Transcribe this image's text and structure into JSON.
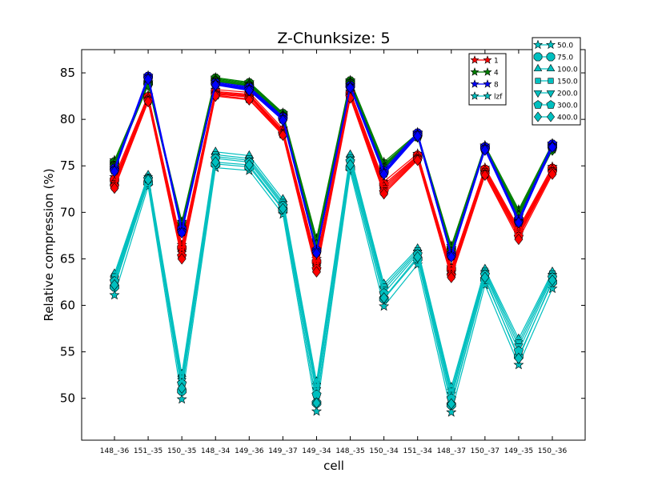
{
  "chart_data": {
    "type": "line",
    "title": "Z-Chunksize: 5",
    "xlabel": "cell",
    "ylabel": "Relative compression (%)",
    "ylim": [
      45.5,
      87.5
    ],
    "yticks": [
      50,
      55,
      60,
      65,
      70,
      75,
      80,
      85
    ],
    "grid": false,
    "categories": [
      "148_-36",
      "151_-35",
      "150_-35",
      "148_-34",
      "149_-36",
      "149_-37",
      "149_-34",
      "148_-35",
      "150_-34",
      "151_-34",
      "148_-37",
      "150_-37",
      "149_-35",
      "150_-36"
    ],
    "series_legend": {
      "placement": "upper-right (inner)",
      "entries": [
        {
          "name": "1",
          "color": "#ff0000"
        },
        {
          "name": "4",
          "color": "#007f00"
        },
        {
          "name": "8",
          "color": "#0000ff"
        },
        {
          "name": "lzf",
          "color": "#00bfbf"
        }
      ]
    },
    "marker_legend": {
      "placement": "top-right",
      "entries": [
        {
          "name": "50.0",
          "marker": "star"
        },
        {
          "name": "75.0",
          "marker": "octagon"
        },
        {
          "name": "100.0",
          "marker": "triangle-up"
        },
        {
          "name": "150.0",
          "marker": "square"
        },
        {
          "name": "200.0",
          "marker": "triangle-down"
        },
        {
          "name": "300.0",
          "marker": "pentagon"
        },
        {
          "name": "400.0",
          "marker": "diamond"
        }
      ]
    },
    "groups": [
      {
        "name": "1",
        "color": "#ff0000",
        "series": [
          {
            "name": "50.0",
            "marker": "star",
            "values": [
              73.8,
              82.6,
              66.5,
              83.2,
              82.9,
              79.0,
              65.0,
              83.0,
              73.3,
              76.3,
              64.1,
              74.8,
              68.3,
              74.9
            ]
          },
          {
            "name": "75.0",
            "marker": "octagon",
            "values": [
              73.5,
              82.4,
              66.2,
              83.0,
              82.7,
              78.8,
              64.7,
              82.8,
              73.0,
              76.1,
              63.9,
              74.6,
              68.1,
              74.7
            ]
          },
          {
            "name": "100.0",
            "marker": "triangle-up",
            "values": [
              73.3,
              82.3,
              66.0,
              82.9,
              82.6,
              78.7,
              64.5,
              82.7,
              72.8,
              76.0,
              63.7,
              74.5,
              68.0,
              74.6
            ]
          },
          {
            "name": "150.0",
            "marker": "square",
            "values": [
              73.1,
              82.2,
              65.8,
              82.8,
              82.5,
              78.6,
              64.3,
              82.6,
              72.6,
              75.9,
              63.5,
              74.4,
              67.8,
              74.5
            ]
          },
          {
            "name": "200.0",
            "marker": "triangle-down",
            "values": [
              72.9,
              82.1,
              65.6,
              82.7,
              82.4,
              78.5,
              64.1,
              82.5,
              72.4,
              75.8,
              63.4,
              74.3,
              67.6,
              74.4
            ]
          },
          {
            "name": "300.0",
            "marker": "pentagon",
            "values": [
              72.8,
              82.0,
              65.3,
              82.6,
              82.2,
              78.4,
              63.9,
              82.4,
              72.2,
              75.7,
              63.2,
              74.1,
              67.4,
              74.3
            ]
          },
          {
            "name": "400.0",
            "marker": "diamond",
            "values": [
              72.6,
              81.9,
              65.0,
              82.5,
              82.1,
              78.3,
              63.6,
              82.3,
              72.0,
              75.6,
              63.0,
              74.0,
              67.1,
              74.1
            ]
          }
        ]
      },
      {
        "name": "4",
        "color": "#007f00",
        "series": [
          {
            "name": "50.0",
            "marker": "star",
            "values": [
              75.6,
              84.0,
              69.0,
              84.5,
              84.0,
              80.7,
              67.2,
              84.2,
              75.4,
              78.5,
              66.4,
              77.2,
              70.3,
              77.4
            ]
          },
          {
            "name": "75.0",
            "marker": "octagon",
            "values": [
              75.4,
              83.9,
              68.8,
              84.4,
              83.9,
              80.6,
              67.0,
              84.1,
              75.2,
              78.4,
              66.2,
              77.0,
              70.1,
              77.2
            ]
          },
          {
            "name": "100.0",
            "marker": "triangle-up",
            "values": [
              75.3,
              83.9,
              68.7,
              84.3,
              83.8,
              80.5,
              66.9,
              84.0,
              75.1,
              78.3,
              66.1,
              76.9,
              70.0,
              77.1
            ]
          },
          {
            "name": "150.0",
            "marker": "square",
            "values": [
              75.2,
              83.8,
              68.6,
              84.2,
              83.7,
              80.4,
              66.8,
              84.0,
              75.0,
              78.2,
              66.0,
              76.8,
              69.9,
              77.0
            ]
          },
          {
            "name": "200.0",
            "marker": "triangle-down",
            "values": [
              75.1,
              83.8,
              68.5,
              84.2,
              83.7,
              80.4,
              66.7,
              83.9,
              74.9,
              78.2,
              65.9,
              76.8,
              69.8,
              76.9
            ]
          },
          {
            "name": "300.0",
            "marker": "pentagon",
            "values": [
              75.0,
              83.7,
              68.4,
              84.1,
              83.6,
              80.3,
              66.6,
              83.9,
              74.8,
              78.1,
              65.8,
              76.7,
              69.7,
              76.8
            ]
          },
          {
            "name": "400.0",
            "marker": "diamond",
            "values": [
              74.9,
              83.7,
              68.3,
              84.1,
              83.6,
              80.3,
              66.5,
              83.8,
              74.7,
              78.1,
              65.7,
              76.7,
              69.6,
              76.7
            ]
          }
        ]
      },
      {
        "name": "8",
        "color": "#0000ff",
        "series": [
          {
            "name": "50.0",
            "marker": "star",
            "values": [
              74.8,
              84.7,
              68.4,
              84.0,
              83.5,
              80.3,
              66.0,
              83.7,
              74.6,
              78.6,
              65.6,
              77.1,
              69.3,
              77.4
            ]
          },
          {
            "name": "75.0",
            "marker": "octagon",
            "values": [
              74.7,
              84.6,
              68.2,
              83.9,
              83.4,
              80.2,
              65.9,
              83.6,
              74.4,
              78.5,
              65.5,
              77.0,
              69.2,
              77.3
            ]
          },
          {
            "name": "100.0",
            "marker": "triangle-up",
            "values": [
              74.6,
              84.5,
              68.1,
              83.9,
              83.3,
              80.1,
              65.8,
              83.6,
              74.3,
              78.4,
              65.4,
              76.9,
              69.1,
              77.2
            ]
          },
          {
            "name": "150.0",
            "marker": "square",
            "values": [
              74.6,
              84.5,
              68.0,
              83.8,
              83.3,
              80.1,
              65.8,
              83.5,
              74.3,
              78.4,
              65.4,
              76.9,
              69.0,
              77.1
            ]
          },
          {
            "name": "200.0",
            "marker": "triangle-down",
            "values": [
              74.5,
              84.4,
              67.9,
              83.8,
              83.2,
              80.0,
              65.7,
              83.5,
              74.2,
              78.3,
              65.3,
              76.8,
              69.0,
              77.1
            ]
          },
          {
            "name": "300.0",
            "marker": "pentagon",
            "values": [
              74.5,
              84.4,
              67.9,
              83.7,
              83.2,
              80.0,
              65.7,
              83.4,
              74.2,
              78.3,
              65.3,
              76.8,
              68.9,
              77.0
            ]
          },
          {
            "name": "400.0",
            "marker": "diamond",
            "values": [
              74.4,
              84.3,
              67.8,
              83.7,
              83.1,
              79.9,
              65.6,
              83.4,
              74.1,
              78.2,
              65.2,
              76.7,
              68.9,
              77.0
            ]
          }
        ]
      },
      {
        "name": "lzf",
        "color": "#00bfbf",
        "series": [
          {
            "name": "50.0",
            "marker": "star",
            "values": [
              61.1,
              72.8,
              49.9,
              74.8,
              74.5,
              69.8,
              48.6,
              74.4,
              59.9,
              64.4,
              48.5,
              62.2,
              53.6,
              61.8
            ]
          },
          {
            "name": "75.0",
            "marker": "octagon",
            "values": [
              62.0,
              73.2,
              50.8,
              75.2,
              74.9,
              70.3,
              49.5,
              74.8,
              60.7,
              65.0,
              49.3,
              62.8,
              54.5,
              62.5
            ]
          },
          {
            "name": "100.0",
            "marker": "triangle-up",
            "values": [
              63.4,
              74.0,
              52.6,
              76.5,
              76.1,
              71.4,
              51.8,
              76.2,
              62.3,
              66.1,
              51.2,
              63.9,
              56.4,
              63.6
            ]
          },
          {
            "name": "150.0",
            "marker": "square",
            "values": [
              63.1,
              73.8,
              52.2,
              76.2,
              75.8,
              71.1,
              51.3,
              75.9,
              62.0,
              65.9,
              50.8,
              63.7,
              56.0,
              63.4
            ]
          },
          {
            "name": "200.0",
            "marker": "triangle-down",
            "values": [
              62.8,
              73.7,
              51.9,
              76.0,
              75.6,
              70.9,
              50.9,
              75.7,
              61.7,
              65.7,
              50.4,
              63.5,
              55.6,
              63.2
            ]
          },
          {
            "name": "300.0",
            "marker": "pentagon",
            "values": [
              62.6,
              73.6,
              51.6,
              75.8,
              75.4,
              70.7,
              50.4,
              75.5,
              61.3,
              65.5,
              50.0,
              63.3,
              55.1,
              63.0
            ]
          },
          {
            "name": "400.0",
            "marker": "diamond",
            "values": [
              62.2,
              73.5,
              51.1,
              75.4,
              75.1,
              70.4,
              49.5,
              75.1,
              60.8,
              65.2,
              49.4,
              63.0,
              54.3,
              62.7
            ]
          }
        ]
      }
    ]
  }
}
